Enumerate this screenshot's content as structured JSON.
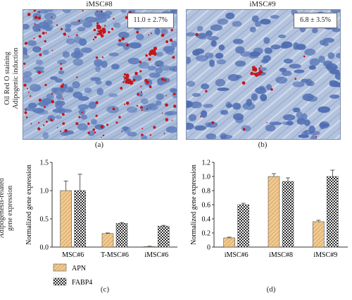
{
  "top": {
    "side_label_line1": "Oil Red O staining",
    "side_label_line2": "Adipogenic induction",
    "panel_a": {
      "title": "iMSC#8",
      "stat": "11.0 ± 2.7%",
      "caption": "(a)"
    },
    "panel_b": {
      "title": "iMSC#9",
      "stat": "6.8 ± 3.5%",
      "caption": "(b)"
    }
  },
  "bottom": {
    "side_label_line1": "Adipogenesis-related",
    "side_label_line2": "gene expression",
    "caption_c": "(c)",
    "caption_d": "(d)"
  },
  "colors": {
    "apn_fill": "#f2c98f",
    "fabp4_fill": "#2a2a2a",
    "cell_blue": "#4f6fb5",
    "stain_red": "#c4161c"
  },
  "chart_data": [
    {
      "type": "bar",
      "id": "c",
      "categories": [
        "MSC#6",
        "T-MSC#6",
        "iMSC#6"
      ],
      "series": [
        {
          "name": "APN",
          "values": [
            1.0,
            0.24,
            0.01
          ],
          "errors": [
            0.17,
            0.01,
            0.005
          ]
        },
        {
          "name": "FABP4",
          "values": [
            1.0,
            0.42,
            0.37
          ],
          "errors": [
            0.29,
            0.015,
            0.015
          ]
        }
      ],
      "ylabel": "Normalized gene expression",
      "ylim": [
        0,
        1.5
      ],
      "yticks": [
        "0.0",
        "0.5",
        "1.0",
        "1.5"
      ],
      "legend": [
        {
          "label": "APN",
          "pattern": "hatch"
        },
        {
          "label": "FABP4",
          "pattern": "checker"
        }
      ]
    },
    {
      "type": "bar",
      "id": "d",
      "categories": [
        "iMSC#6",
        "iMSC#8",
        "iMSC#9"
      ],
      "series": [
        {
          "name": "APN",
          "values": [
            0.13,
            1.0,
            0.36
          ],
          "errors": [
            0.01,
            0.04,
            0.02
          ]
        },
        {
          "name": "FABP4",
          "values": [
            0.6,
            0.93,
            1.0
          ],
          "errors": [
            0.02,
            0.05,
            0.09
          ]
        }
      ],
      "ylabel": "Normalized gene expression",
      "ylim": [
        0,
        1.2
      ],
      "yticks": [
        "0",
        "0.2",
        "0.4",
        "0.6",
        "0.8",
        "1.0",
        "1.2"
      ]
    }
  ]
}
